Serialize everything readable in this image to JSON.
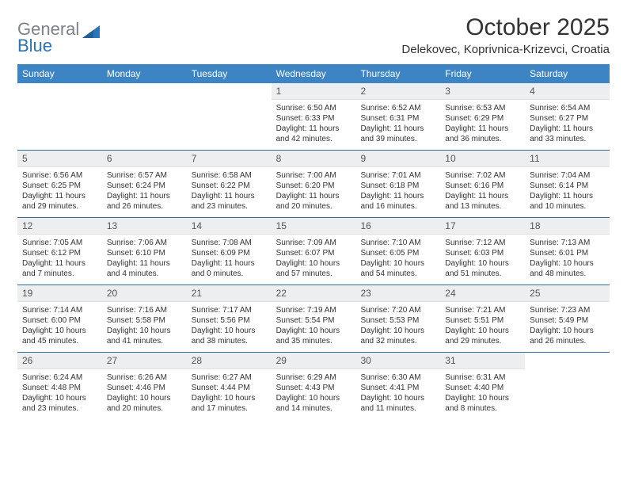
{
  "brand": {
    "general": "General",
    "blue": "Blue"
  },
  "title": "October 2025",
  "location": "Delekovec, Koprivnica-Krizevci, Croatia",
  "colors": {
    "header_bg": "#3d84c4",
    "daynum_bg": "#eceeef",
    "week_border": "#2f6aa3",
    "text": "#333333",
    "logo_gray": "#7c8288",
    "logo_blue": "#2a74b8"
  },
  "dayNames": [
    "Sunday",
    "Monday",
    "Tuesday",
    "Wednesday",
    "Thursday",
    "Friday",
    "Saturday"
  ],
  "weeks": [
    [
      null,
      null,
      null,
      {
        "n": "1",
        "sr": "6:50 AM",
        "ss": "6:33 PM",
        "dl": "11 hours and 42 minutes."
      },
      {
        "n": "2",
        "sr": "6:52 AM",
        "ss": "6:31 PM",
        "dl": "11 hours and 39 minutes."
      },
      {
        "n": "3",
        "sr": "6:53 AM",
        "ss": "6:29 PM",
        "dl": "11 hours and 36 minutes."
      },
      {
        "n": "4",
        "sr": "6:54 AM",
        "ss": "6:27 PM",
        "dl": "11 hours and 33 minutes."
      }
    ],
    [
      {
        "n": "5",
        "sr": "6:56 AM",
        "ss": "6:25 PM",
        "dl": "11 hours and 29 minutes."
      },
      {
        "n": "6",
        "sr": "6:57 AM",
        "ss": "6:24 PM",
        "dl": "11 hours and 26 minutes."
      },
      {
        "n": "7",
        "sr": "6:58 AM",
        "ss": "6:22 PM",
        "dl": "11 hours and 23 minutes."
      },
      {
        "n": "8",
        "sr": "7:00 AM",
        "ss": "6:20 PM",
        "dl": "11 hours and 20 minutes."
      },
      {
        "n": "9",
        "sr": "7:01 AM",
        "ss": "6:18 PM",
        "dl": "11 hours and 16 minutes."
      },
      {
        "n": "10",
        "sr": "7:02 AM",
        "ss": "6:16 PM",
        "dl": "11 hours and 13 minutes."
      },
      {
        "n": "11",
        "sr": "7:04 AM",
        "ss": "6:14 PM",
        "dl": "11 hours and 10 minutes."
      }
    ],
    [
      {
        "n": "12",
        "sr": "7:05 AM",
        "ss": "6:12 PM",
        "dl": "11 hours and 7 minutes."
      },
      {
        "n": "13",
        "sr": "7:06 AM",
        "ss": "6:10 PM",
        "dl": "11 hours and 4 minutes."
      },
      {
        "n": "14",
        "sr": "7:08 AM",
        "ss": "6:09 PM",
        "dl": "11 hours and 0 minutes."
      },
      {
        "n": "15",
        "sr": "7:09 AM",
        "ss": "6:07 PM",
        "dl": "10 hours and 57 minutes."
      },
      {
        "n": "16",
        "sr": "7:10 AM",
        "ss": "6:05 PM",
        "dl": "10 hours and 54 minutes."
      },
      {
        "n": "17",
        "sr": "7:12 AM",
        "ss": "6:03 PM",
        "dl": "10 hours and 51 minutes."
      },
      {
        "n": "18",
        "sr": "7:13 AM",
        "ss": "6:01 PM",
        "dl": "10 hours and 48 minutes."
      }
    ],
    [
      {
        "n": "19",
        "sr": "7:14 AM",
        "ss": "6:00 PM",
        "dl": "10 hours and 45 minutes."
      },
      {
        "n": "20",
        "sr": "7:16 AM",
        "ss": "5:58 PM",
        "dl": "10 hours and 41 minutes."
      },
      {
        "n": "21",
        "sr": "7:17 AM",
        "ss": "5:56 PM",
        "dl": "10 hours and 38 minutes."
      },
      {
        "n": "22",
        "sr": "7:19 AM",
        "ss": "5:54 PM",
        "dl": "10 hours and 35 minutes."
      },
      {
        "n": "23",
        "sr": "7:20 AM",
        "ss": "5:53 PM",
        "dl": "10 hours and 32 minutes."
      },
      {
        "n": "24",
        "sr": "7:21 AM",
        "ss": "5:51 PM",
        "dl": "10 hours and 29 minutes."
      },
      {
        "n": "25",
        "sr": "7:23 AM",
        "ss": "5:49 PM",
        "dl": "10 hours and 26 minutes."
      }
    ],
    [
      {
        "n": "26",
        "sr": "6:24 AM",
        "ss": "4:48 PM",
        "dl": "10 hours and 23 minutes."
      },
      {
        "n": "27",
        "sr": "6:26 AM",
        "ss": "4:46 PM",
        "dl": "10 hours and 20 minutes."
      },
      {
        "n": "28",
        "sr": "6:27 AM",
        "ss": "4:44 PM",
        "dl": "10 hours and 17 minutes."
      },
      {
        "n": "29",
        "sr": "6:29 AM",
        "ss": "4:43 PM",
        "dl": "10 hours and 14 minutes."
      },
      {
        "n": "30",
        "sr": "6:30 AM",
        "ss": "4:41 PM",
        "dl": "10 hours and 11 minutes."
      },
      {
        "n": "31",
        "sr": "6:31 AM",
        "ss": "4:40 PM",
        "dl": "10 hours and 8 minutes."
      },
      null
    ]
  ],
  "labels": {
    "sunrise": "Sunrise:",
    "sunset": "Sunset:",
    "daylight": "Daylight:"
  }
}
